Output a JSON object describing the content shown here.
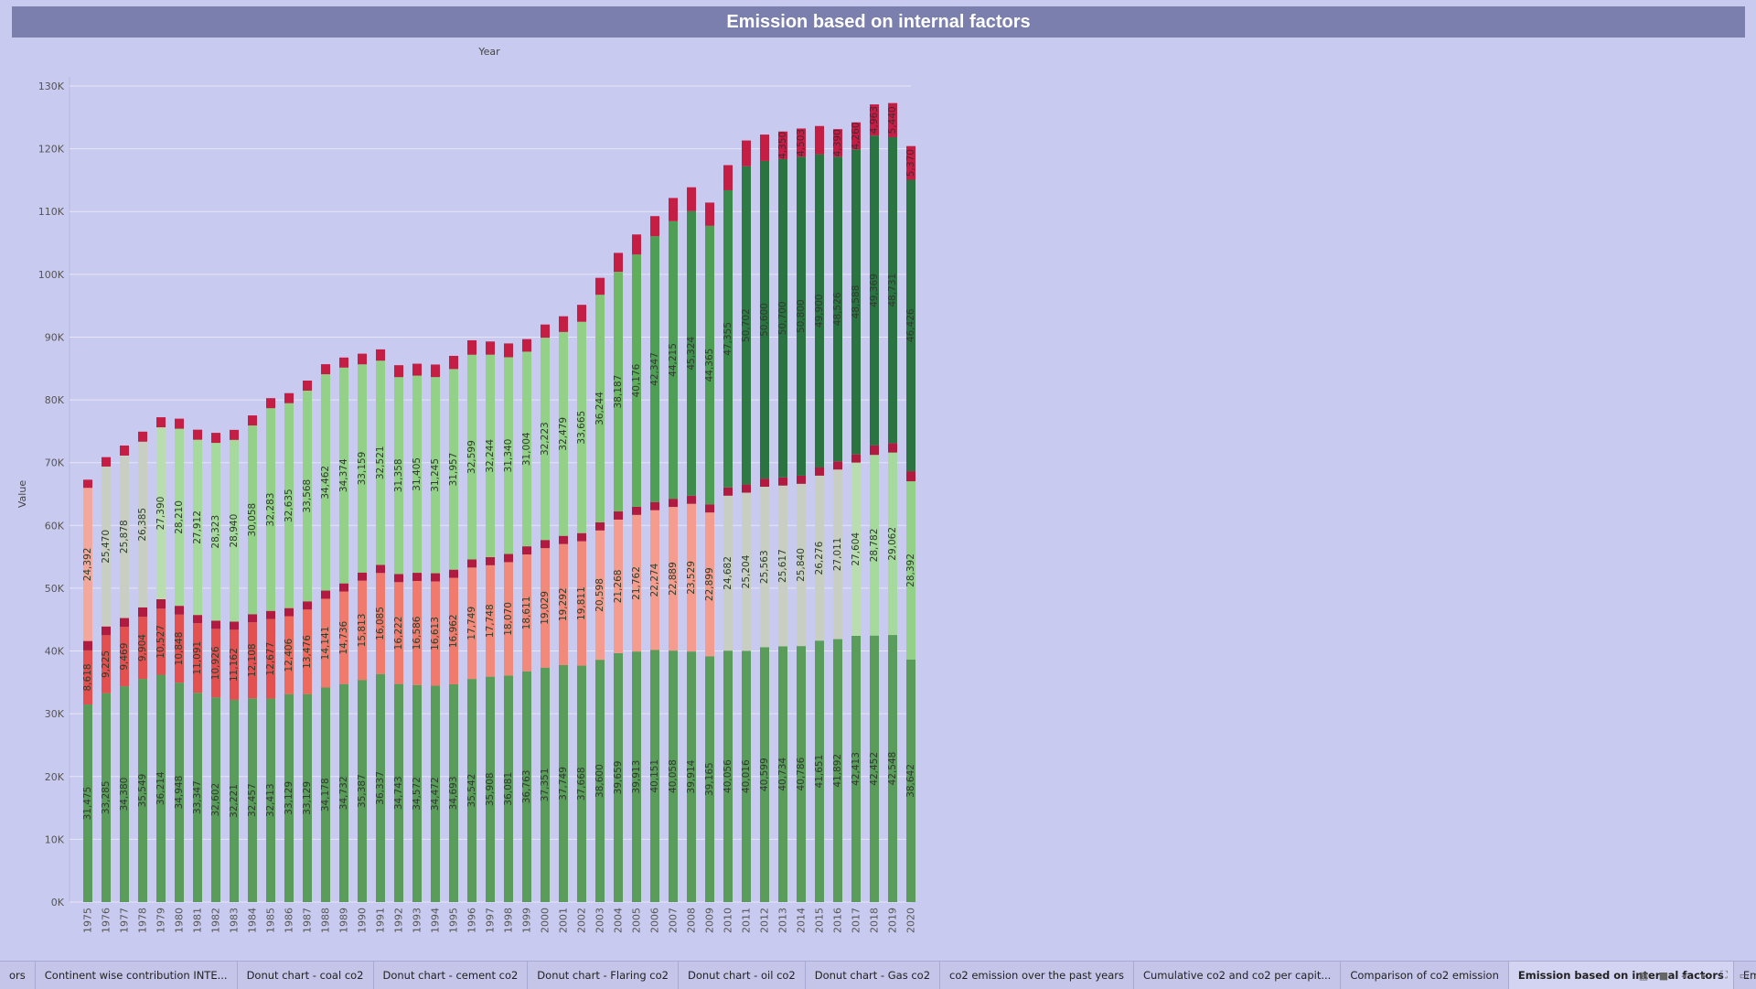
{
  "title": "Emission based on internal factors",
  "tabs": [
    {
      "label": "ors",
      "active": false
    },
    {
      "label": "Continent wise contribution INTE...",
      "active": false
    },
    {
      "label": "Donut chart - coal co2",
      "active": false
    },
    {
      "label": "Donut chart - cement co2",
      "active": false
    },
    {
      "label": "Donut chart - Flaring co2",
      "active": false
    },
    {
      "label": "Donut chart - oil co2",
      "active": false
    },
    {
      "label": "Donut chart - Gas co2",
      "active": false
    },
    {
      "label": "co2 emission over the past years",
      "active": false
    },
    {
      "label": "Cumulative co2 and co2 per capit...",
      "active": false
    },
    {
      "label": "Comparison of co2 emission",
      "active": false
    },
    {
      "label": "Emission based on internal factors",
      "active": true
    },
    {
      "label": "Emission due t",
      "active": false
    }
  ],
  "tab_controls": [
    "grid-view-icon",
    "filmstrip-icon",
    "prev-icon",
    "next-icon",
    "fullscreen-icon",
    "present-icon"
  ],
  "chart_data": {
    "type": "bar",
    "stacked": true,
    "title": "Emission based on internal factors",
    "xlabel": "Year",
    "ylabel": "Value",
    "ylim": [
      0,
      130000
    ],
    "yticks": [
      "0K",
      "10K",
      "20K",
      "30K",
      "40K",
      "50K",
      "60K",
      "70K",
      "80K",
      "90K",
      "100K",
      "110K",
      "120K",
      "130K"
    ],
    "grid": true,
    "categories": [
      "1975",
      "1976",
      "1977",
      "1978",
      "1979",
      "1980",
      "1981",
      "1982",
      "1983",
      "1984",
      "1985",
      "1986",
      "1987",
      "1988",
      "1989",
      "1990",
      "1991",
      "1992",
      "1993",
      "1994",
      "1995",
      "1996",
      "1997",
      "1998",
      "1999",
      "2000",
      "2001",
      "2002",
      "2003",
      "2004",
      "2005",
      "2006",
      "2007",
      "2008",
      "2009",
      "2010",
      "2011",
      "2012",
      "2013",
      "2014",
      "2015",
      "2016",
      "2017",
      "2018",
      "2019",
      "2020"
    ],
    "segments": [
      {
        "values": [
          31475,
          33285,
          34380,
          35549,
          36214,
          34948,
          33347,
          32602,
          32221,
          32457,
          32413,
          33129,
          33129,
          34178,
          34732,
          35387,
          36337,
          34743,
          34572,
          34472,
          34693,
          35542,
          35908,
          36081,
          36763,
          37351,
          37749,
          37668,
          38600,
          39659,
          39913,
          40151,
          40058,
          39914,
          39165,
          40056,
          40016,
          40599,
          40734,
          40786,
          41651,
          41892,
          42413,
          42452,
          42548,
          38642
        ],
        "labels": [
          "31,475",
          "33,285",
          "34,380",
          "35,549",
          "36,214",
          "34,948",
          "33,347",
          "32,602",
          "32,221",
          "32,457",
          "32,413",
          "33,129",
          "33,129",
          "34,178",
          "34,732",
          "35,387",
          "36,337",
          "34,743",
          "34,572",
          "34,472",
          "34,693",
          "35,542",
          "35,908",
          "36,081",
          "36,763",
          "37,351",
          "37,749",
          "37,668",
          "38,600",
          "39,659",
          "39,913",
          "40,151",
          "40,058",
          "39,914",
          "39,165",
          "40,056",
          "40,016",
          "40,599",
          "40,734",
          "40,786",
          "41,651",
          "41,892",
          "42,413",
          "42,452",
          "42,548",
          "38,642"
        ],
        "colors": [
          "#5a9c5a"
        ]
      },
      {
        "values": [
          8618,
          9225,
          9469,
          9904,
          10527,
          10848,
          11091,
          10926,
          11162,
          12108,
          12677,
          12406,
          13476,
          14141,
          14736,
          15813,
          16085,
          16222,
          16586,
          16613,
          16962,
          17749,
          17748,
          18070,
          18611,
          19029,
          19292,
          19811,
          20598,
          21268,
          21762,
          22274,
          22889,
          23529,
          22899,
          24682,
          25204,
          25563,
          25617,
          25840,
          26276,
          27011,
          27604,
          28782,
          29062,
          28392
        ],
        "labels": [
          "8,618",
          "9,225",
          "9,469",
          "9,904",
          "10,527",
          "10,848",
          "11,091",
          "10,926",
          "11,162",
          "12,108",
          "12,677",
          "12,406",
          "13,476",
          "14,141",
          "14,736",
          "15,813",
          "16,085",
          "16,222",
          "16,586",
          "16,613",
          "16,962",
          "17,749",
          "17,748",
          "18,070",
          "18,611",
          "19,029",
          "19,292",
          "19,811",
          "20,598",
          "21,268",
          "21,762",
          "22,274",
          "22,889",
          "23,529",
          "22,899",
          "24,682",
          "25,204",
          "25,563",
          "25,617",
          "25,840",
          "26,276",
          "27,011",
          "27,604",
          "28,782",
          "29,062",
          "28,392"
        ],
        "colors": [
          "#e35050",
          "#e35050",
          "#e35050",
          "#e35050",
          "#e35050",
          "#e35050",
          "#e35050",
          "#e35050",
          "#e35050",
          "#e35050",
          "#e35050",
          "#ee6a5c",
          "#ee6a5c",
          "#f07b6d",
          "#f07b6d",
          "#f07b6d",
          "#f07b6d",
          "#f07b6d",
          "#f07b6d",
          "#f07b6d",
          "#f07b6d",
          "#f28a7c",
          "#f28a7c",
          "#f28a7c",
          "#f28a7c",
          "#f28a7c",
          "#f28a7c",
          "#f28a7c",
          "#f49c8e",
          "#f49c8e",
          "#f49c8e",
          "#f49c8e",
          "#f49c8e",
          "#f49c8e",
          "#f49c8e",
          "#c8cfc2",
          "#c8cfc2",
          "#c8cfc2",
          "#c8cfc2",
          "#c8cfc2",
          "#c8cfc2",
          "#c8cfc2",
          "#b9dcb0",
          "#a6d99c",
          "#a6d99c",
          "#94d188"
        ]
      },
      {
        "values": [
          1500,
          1400,
          1400,
          1500,
          1500,
          1400,
          1300,
          1300,
          1300,
          1300,
          1300,
          1300,
          1300,
          1300,
          1300,
          1300,
          1300,
          1300,
          1300,
          1300,
          1300,
          1300,
          1300,
          1300,
          1300,
          1300,
          1300,
          1300,
          1300,
          1300,
          1300,
          1300,
          1300,
          1300,
          1300,
          1300,
          1300,
          1300,
          1300,
          1300,
          1300,
          1300,
          1300,
          1500,
          1500,
          1600
        ],
        "colors": [
          "#b01b3f"
        ]
      },
      {
        "values": [
          24392,
          25470,
          25878,
          26385,
          27390,
          28210,
          27912,
          28323,
          28940,
          30058,
          32283,
          32635,
          33568,
          34462,
          34374,
          33159,
          32521,
          31358,
          31405,
          31245,
          31957,
          32599,
          32244,
          31340,
          31004,
          32223,
          32479,
          33665,
          36244,
          38187,
          40176,
          42347,
          44215,
          45324,
          44365,
          47355,
          50702,
          50600,
          50700,
          50800,
          49900,
          48526,
          48588,
          49369,
          48731,
          46426
        ],
        "labels": [
          "24,392",
          "25,470",
          "25,878",
          "26,385",
          "27,390",
          "28,210",
          "27,912",
          "28,323",
          "28,940",
          "30,058",
          "32,283",
          "32,635",
          "33,568",
          "34,462",
          "34,374",
          "33,159",
          "32,521",
          "31,358",
          "31,405",
          "31,245",
          "31,957",
          "32,599",
          "32,244",
          "31,340",
          "31,004",
          "32,223",
          "32,479",
          "33,665",
          "36,244",
          "38,187",
          "40,176",
          "42,347",
          "44,215",
          "45,324",
          "44,365",
          "47,355",
          "50,702",
          "50,600",
          "50,700",
          "50,800",
          "49,900",
          "48,526",
          "48,588",
          "49,369",
          "48,731",
          "46,426"
        ],
        "colors": [
          "#f3a89b",
          "#c8cfc2",
          "#c8cfc2",
          "#c8cfc2",
          "#b9dcb0",
          "#a6d99c",
          "#a6d99c",
          "#a6d99c",
          "#a6d99c",
          "#94d188",
          "#94d188",
          "#94d188",
          "#94d188",
          "#94d188",
          "#94d188",
          "#94d188",
          "#94d188",
          "#94d188",
          "#94d188",
          "#94d188",
          "#94d188",
          "#94d188",
          "#94d188",
          "#94d188",
          "#94d188",
          "#94d188",
          "#94d188",
          "#94d188",
          "#86c67a",
          "#6eb866",
          "#5fae5b",
          "#4f9e55",
          "#4f9e55",
          "#3e8c4c",
          "#4f9e55",
          "#3a8a4b",
          "#2d7a44",
          "#2a7442",
          "#2a7442",
          "#2a7442",
          "#2a7442",
          "#2a7442",
          "#2a7442",
          "#2a7442",
          "#2a7442",
          "#2a7442"
        ]
      },
      {
        "values": [
          1300,
          1500,
          1600,
          1600,
          1600,
          1600,
          1600,
          1600,
          1600,
          1600,
          1600,
          1600,
          1600,
          1600,
          1600,
          1700,
          1800,
          1900,
          1900,
          2000,
          2100,
          2300,
          2100,
          2200,
          2000,
          2100,
          2500,
          2700,
          2700,
          3000,
          3200,
          3200,
          3700,
          3800,
          3700,
          4000,
          4100,
          4200,
          4400,
          4500,
          4500,
          4400,
          4300,
          4963,
          5440,
          5370
        ],
        "labels": [
          "",
          "",
          "",
          "",
          "",
          "",
          "",
          "",
          "",
          "",
          "",
          "",
          "",
          "",
          "",
          "",
          "",
          "",
          "",
          "",
          "",
          "",
          "",
          "",
          "",
          "",
          "",
          "",
          "",
          "",
          "",
          "",
          "",
          "",
          "",
          "",
          "",
          "",
          "4,350",
          "4,503",
          "",
          "4,390",
          "4,260",
          "4,963",
          "5,440",
          "5,370"
        ],
        "colors": [
          "#c41e44"
        ]
      }
    ]
  }
}
